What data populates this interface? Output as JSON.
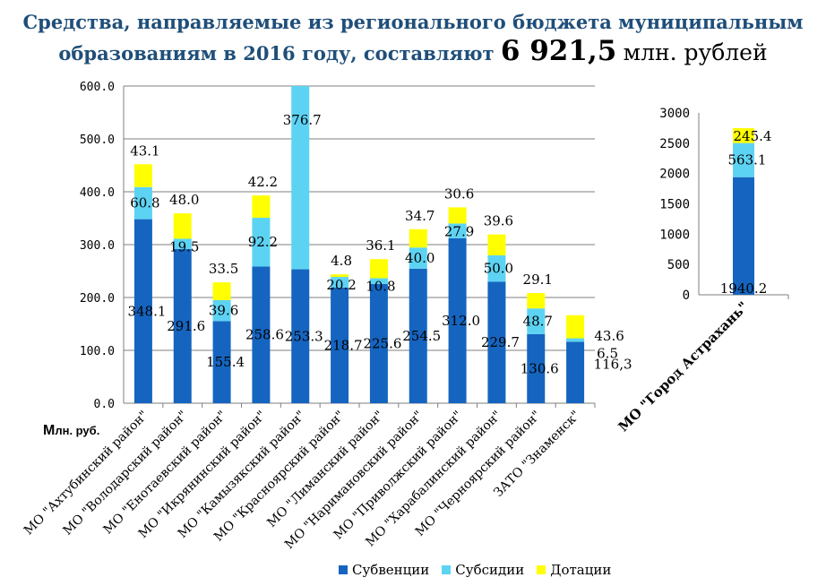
{
  "title": {
    "line1": "Средства, направляемые из регионального бюджета муниципальным",
    "line2_prefix": "образованиям в 2016 году, составляют",
    "total": "6 921,5",
    "unit": "млн. рублей"
  },
  "y_unit_label": {
    "first": "М",
    "rest": "лн. руб."
  },
  "colors": {
    "Субвенции": "#1565c0",
    "Субсидии": "#5dd3f3",
    "Дотации": "#ffff00"
  },
  "chart_data": [
    {
      "type": "bar",
      "stacked": true,
      "ylim": [
        0,
        600
      ],
      "yticks": [
        "0.0",
        "100.0",
        "200.0",
        "300.0",
        "400.0",
        "500.0",
        "600.0"
      ],
      "categories": [
        "МО \"Ахтубинский район\"",
        "МО \"Володарский район\"",
        "МО \"Енотаевский район\"",
        "МО \"Икрянинский район\"",
        "МО \"Камызякский район\"",
        "МО \"Красноярский район\"",
        "МО \"Лиманский район\"",
        "МО \"Наримановский район\"",
        "МО \"Приволжский район\"",
        "МО \"Харабалинский район\"",
        "МО \"Черноярский район\"",
        "ЗАТО \"Знаменск\""
      ],
      "series": [
        {
          "name": "Субвенции",
          "values": [
            348.1,
            291.6,
            155.4,
            258.6,
            253.3,
            218.7,
            225.6,
            254.5,
            312.0,
            229.7,
            130.6,
            116.3
          ],
          "labels": [
            "348.1",
            "291.6",
            "155.4",
            "258.6",
            "253.3",
            "218.7",
            "225.6",
            "254.5",
            "312.0",
            "229.7",
            "130.6",
            "116,3"
          ]
        },
        {
          "name": "Субсидии",
          "values": [
            60.8,
            19.5,
            39.6,
            92.2,
            376.7,
            20.2,
            10.8,
            40.0,
            27.9,
            50.0,
            48.7,
            6.5
          ],
          "labels": [
            "60.8",
            "19.5",
            "39.6",
            "92.2",
            "376.7",
            "20.2",
            "10.8",
            "40.0",
            "27.9",
            "50.0",
            "48.7",
            "6.5"
          ]
        },
        {
          "name": "Дотации",
          "values": [
            43.1,
            48.0,
            33.5,
            42.2,
            0,
            4.8,
            36.1,
            34.7,
            30.6,
            39.6,
            29.1,
            43.6
          ],
          "labels": [
            "43.1",
            "48.0",
            "33.5",
            "42.2",
            "",
            "4.8",
            "36.1",
            "34.7",
            "30.6",
            "39.6",
            "29.1",
            "43.6"
          ]
        }
      ],
      "grid": true
    },
    {
      "type": "bar",
      "stacked": true,
      "ylim": [
        0,
        3000
      ],
      "yticks": [
        "0",
        "500",
        "1000",
        "1500",
        "2000",
        "2500",
        "3000"
      ],
      "categories": [
        "МО \"Город Астрахань\""
      ],
      "series": [
        {
          "name": "Субвенции",
          "values": [
            1940.2
          ],
          "labels": [
            "1940.2"
          ]
        },
        {
          "name": "Субсидии",
          "values": [
            563.1
          ],
          "labels": [
            "563.1"
          ]
        },
        {
          "name": "Дотации",
          "values": [
            245.4
          ],
          "labels": [
            "245.4"
          ]
        }
      ],
      "grid": false
    }
  ],
  "legend": [
    "Субвенции",
    "Субсидии",
    "Дотации"
  ]
}
